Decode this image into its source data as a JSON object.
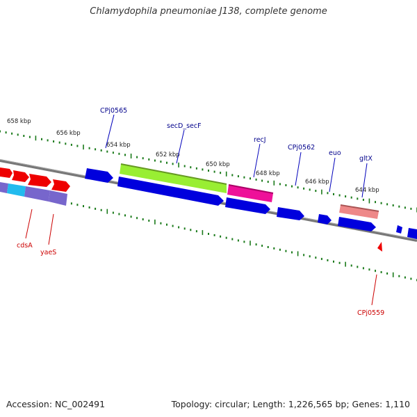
{
  "title": "Chlamydophila pneumoniae J138, complete genome",
  "footer": {
    "accession": "Accession: NC_002491",
    "stats": "Topology: circular; Length: 1,226,565 bp; Genes: 1,110"
  },
  "colors": {
    "backbone": "#808080",
    "tick": "#1a7a1a",
    "forward_label": "#00008b",
    "reverse_label": "#cc0000",
    "cds_blue": "#0000dd",
    "cds_green": "#99ee33",
    "cds_magenta": "#ee1199",
    "cds_salmon": "#ee8888",
    "cds_red": "#ee0000",
    "cds_cyan": "#22bbee",
    "cds_purple": "#7766cc"
  },
  "ticks": [
    {
      "label": "658 kbp"
    },
    {
      "label": "656 kbp"
    },
    {
      "label": "654 kbp"
    },
    {
      "label": "652 kbp"
    },
    {
      "label": "650 kbp"
    },
    {
      "label": "648 kbp"
    },
    {
      "label": "646 kbp"
    },
    {
      "label": "644 kbp"
    }
  ],
  "forward_genes": [
    {
      "name": "CPj0565"
    },
    {
      "name": "secD_secF"
    },
    {
      "name": "recJ"
    },
    {
      "name": "CPj0562"
    },
    {
      "name": "euo"
    },
    {
      "name": "gltX"
    }
  ],
  "reverse_genes": [
    {
      "name": "cdsA"
    },
    {
      "name": "yaeS"
    },
    {
      "name": "CPj0559"
    }
  ]
}
